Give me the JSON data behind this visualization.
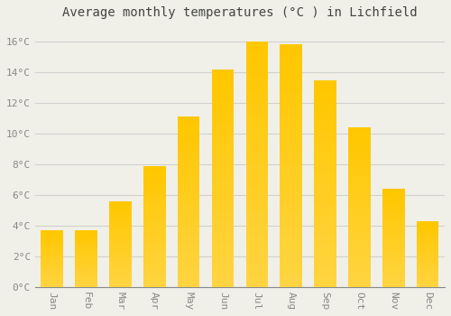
{
  "title": "Average monthly temperatures (°C ) in Lichfield",
  "months": [
    "Jan",
    "Feb",
    "Mar",
    "Apr",
    "May",
    "Jun",
    "Jul",
    "Aug",
    "Sep",
    "Oct",
    "Nov",
    "Dec"
  ],
  "values": [
    3.7,
    3.7,
    5.6,
    7.9,
    11.1,
    14.2,
    16.0,
    15.8,
    13.5,
    10.4,
    6.4,
    4.3
  ],
  "bar_color": "#FFA500",
  "bar_color_light": "#FFD080",
  "background_color": "#F0F0E8",
  "grid_color": "#D0D0D0",
  "ylim": [
    0,
    17
  ],
  "yticks": [
    0,
    2,
    4,
    6,
    8,
    10,
    12,
    14,
    16
  ],
  "ytick_labels": [
    "0°C",
    "2°C",
    "4°C",
    "6°C",
    "8°C",
    "10°C",
    "12°C",
    "14°C",
    "16°C"
  ],
  "title_fontsize": 10,
  "tick_fontsize": 8,
  "tick_color": "#888888",
  "font_family": "monospace"
}
